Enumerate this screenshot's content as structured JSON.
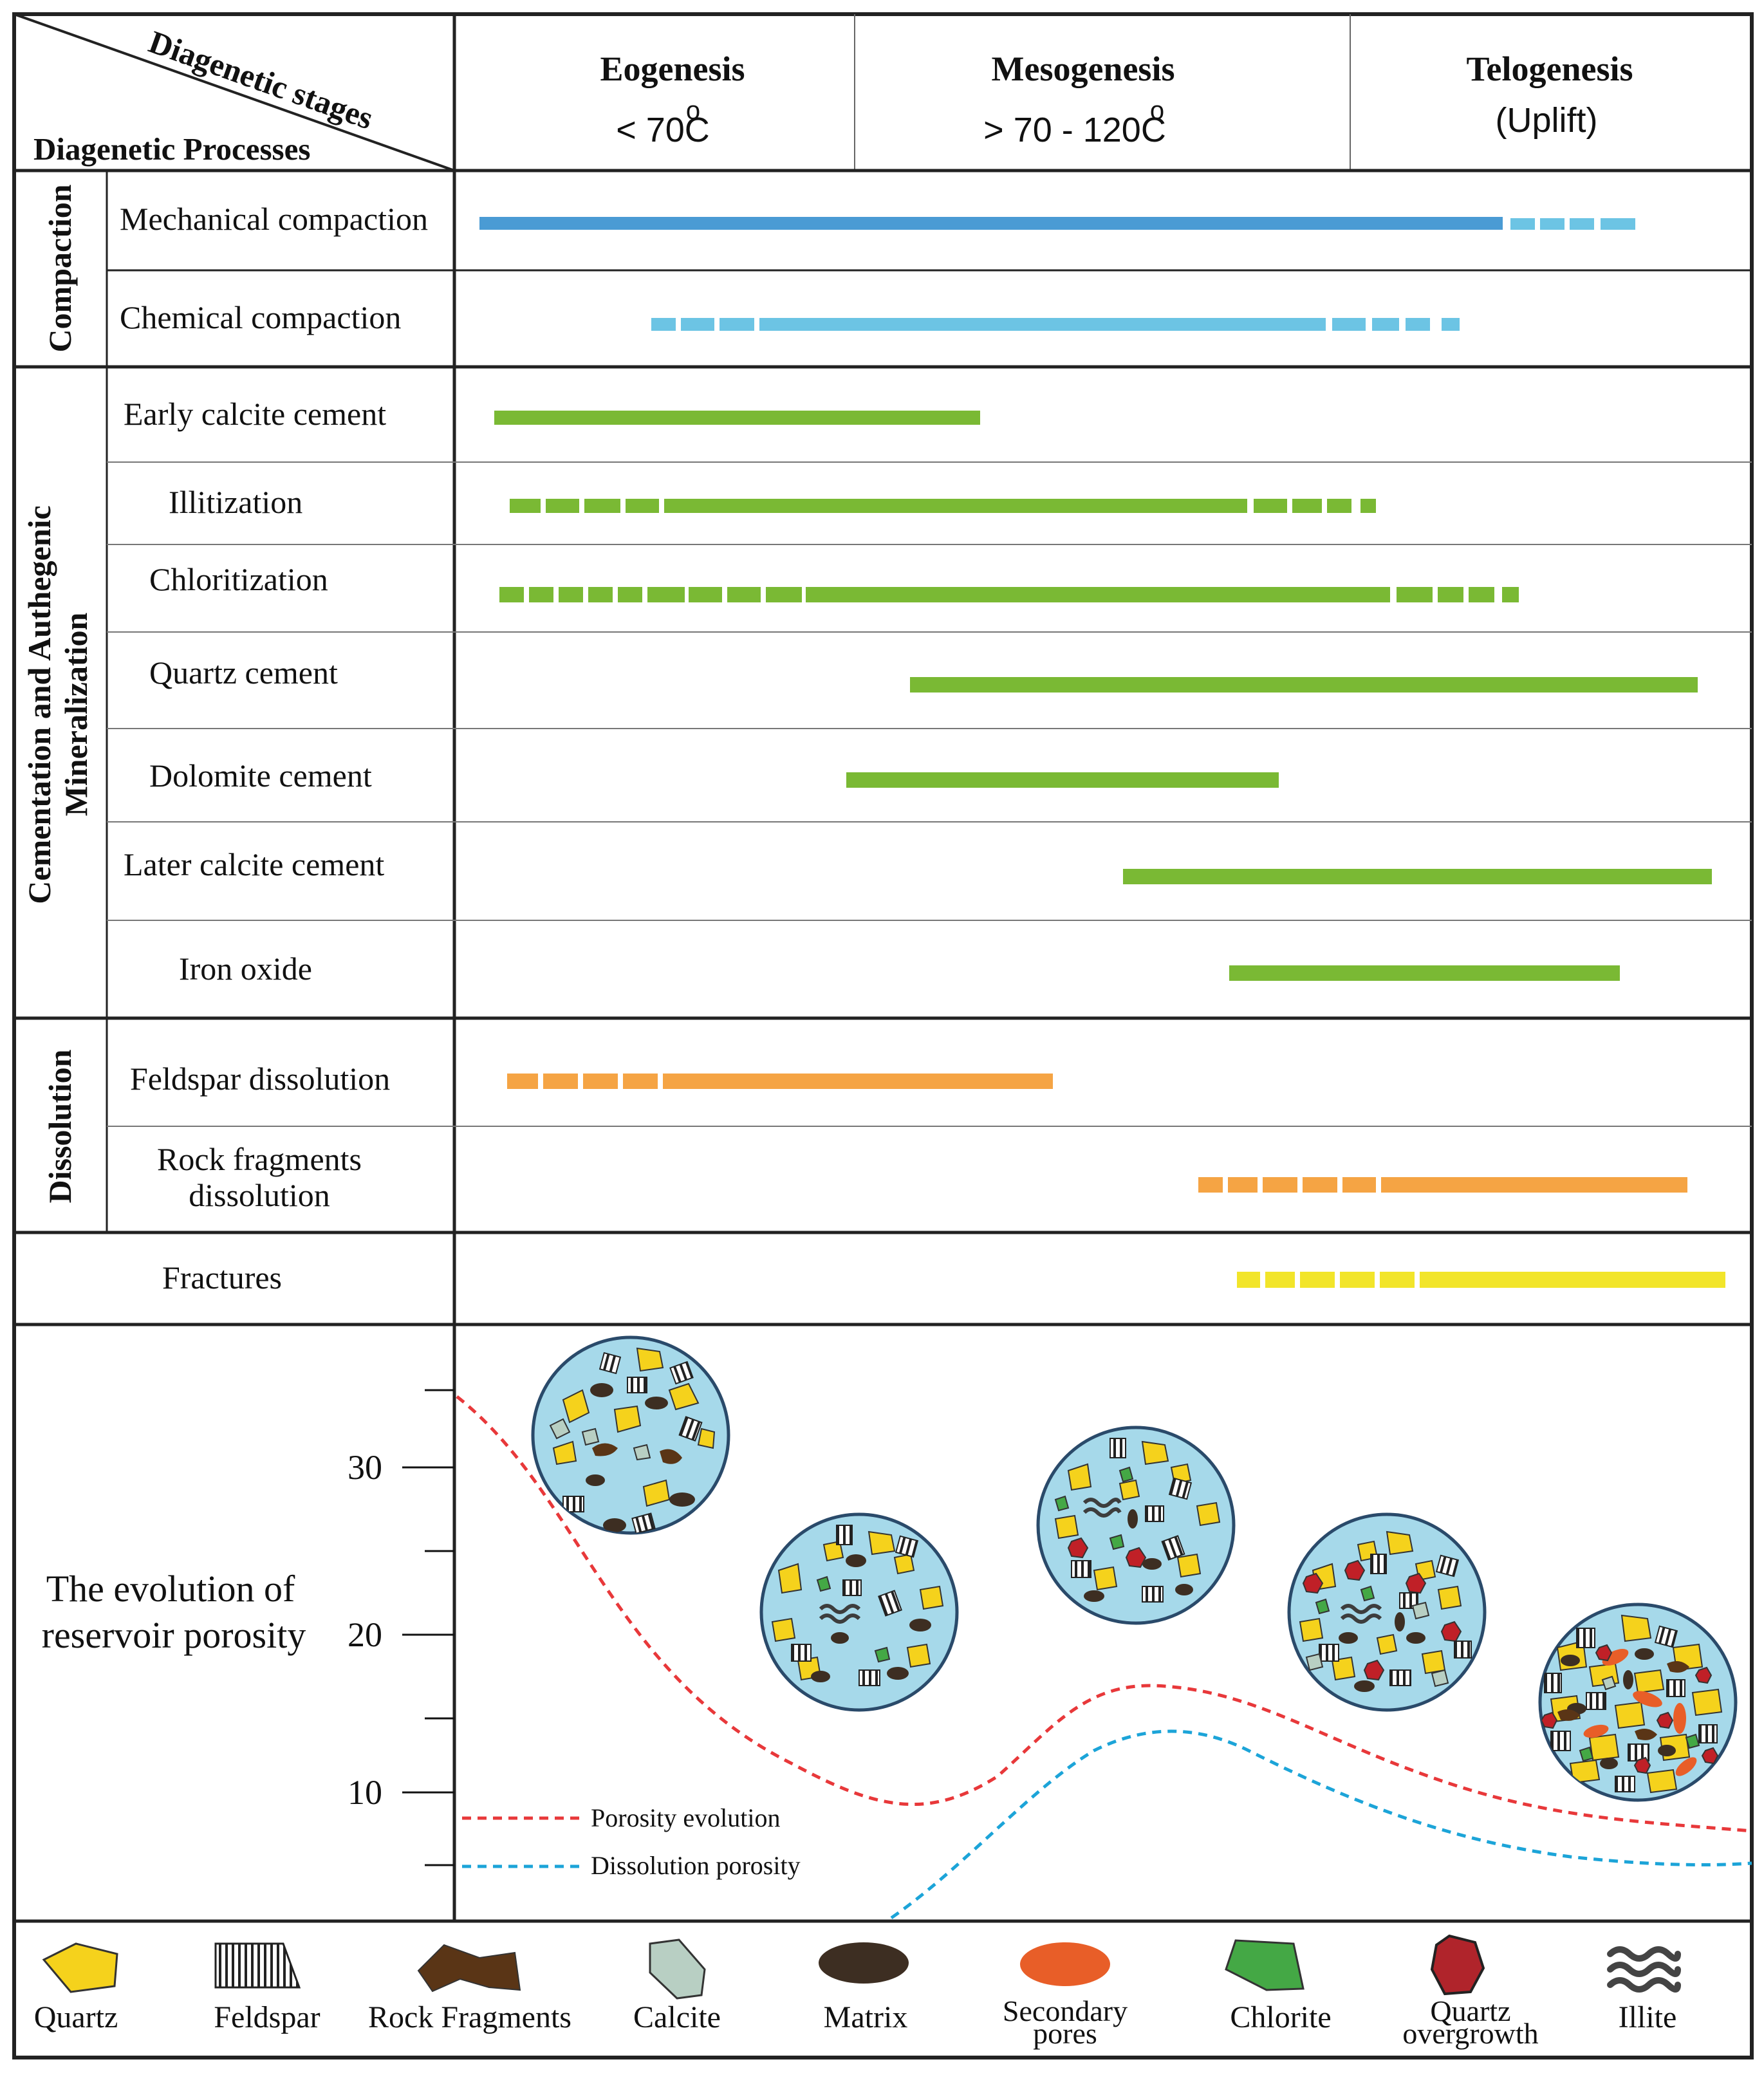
{
  "header": {
    "stages_label": "Diagenetic stages",
    "processes_label": "Diagenetic Processes",
    "stages": [
      {
        "name": "Eogenesis",
        "temp": "< 70",
        "unit": "C",
        "deg": "o"
      },
      {
        "name": "Mesogenesis",
        "temp": "> 70 - 120",
        "unit": "C",
        "deg": "o"
      },
      {
        "name": "Telogenesis",
        "temp": "(Uplift)",
        "unit": "",
        "deg": ""
      }
    ]
  },
  "groups": {
    "compaction": "Compaction",
    "cementation_1": "Cementation and Authegenic",
    "cementation_2": "Mineralization",
    "dissolution": "Dissolution"
  },
  "processes": {
    "mechanical_compaction": "Mechanical compaction",
    "chemical_compaction": "Chemical compaction",
    "early_calcite": "Early calcite cement",
    "illitization": "Illitization",
    "chloritization": "Chloritization",
    "quartz_cement": "Quartz cement",
    "dolomite_cement": "Dolomite cement",
    "later_calcite": "Later calcite cement",
    "iron_oxide": "Iron oxide",
    "feldspar_dissolution": "Feldspar dissolution",
    "rock_fragments_dissolution_1": "Rock fragments",
    "rock_fragments_dissolution_2": "dissolution",
    "fractures": "Fractures"
  },
  "colors": {
    "compaction_dark": "#4a9bd4",
    "compaction_light": "#6cc4e4",
    "cement_green": "#7ab934",
    "dissolution_orange": "#f5a444",
    "fracture_yellow": "#f2e52a",
    "porosity_red": "#e8383a",
    "dissolution_blue": "#1ca4d8",
    "grain_bg": "#a6d9ea"
  },
  "porosity": {
    "title_1": "The evolution of",
    "title_2": "reservoir porosity",
    "ticks": [
      "30",
      "20",
      "10"
    ],
    "legend_porosity": "Porosity evolution",
    "legend_dissolution": "Dissolution porosity"
  },
  "legend": {
    "quartz": "Quartz",
    "feldspar": "Feldspar",
    "rock_fragments": "Rock Fragments",
    "calcite": "Calcite",
    "matrix": "Matrix",
    "secondary_pores_1": "Secondary",
    "secondary_pores_2": "pores",
    "chlorite": "Chlorite",
    "quartz_overgrowth_1": "Quartz",
    "quartz_overgrowth_2": "overgrowth",
    "illite": "Illite"
  }
}
